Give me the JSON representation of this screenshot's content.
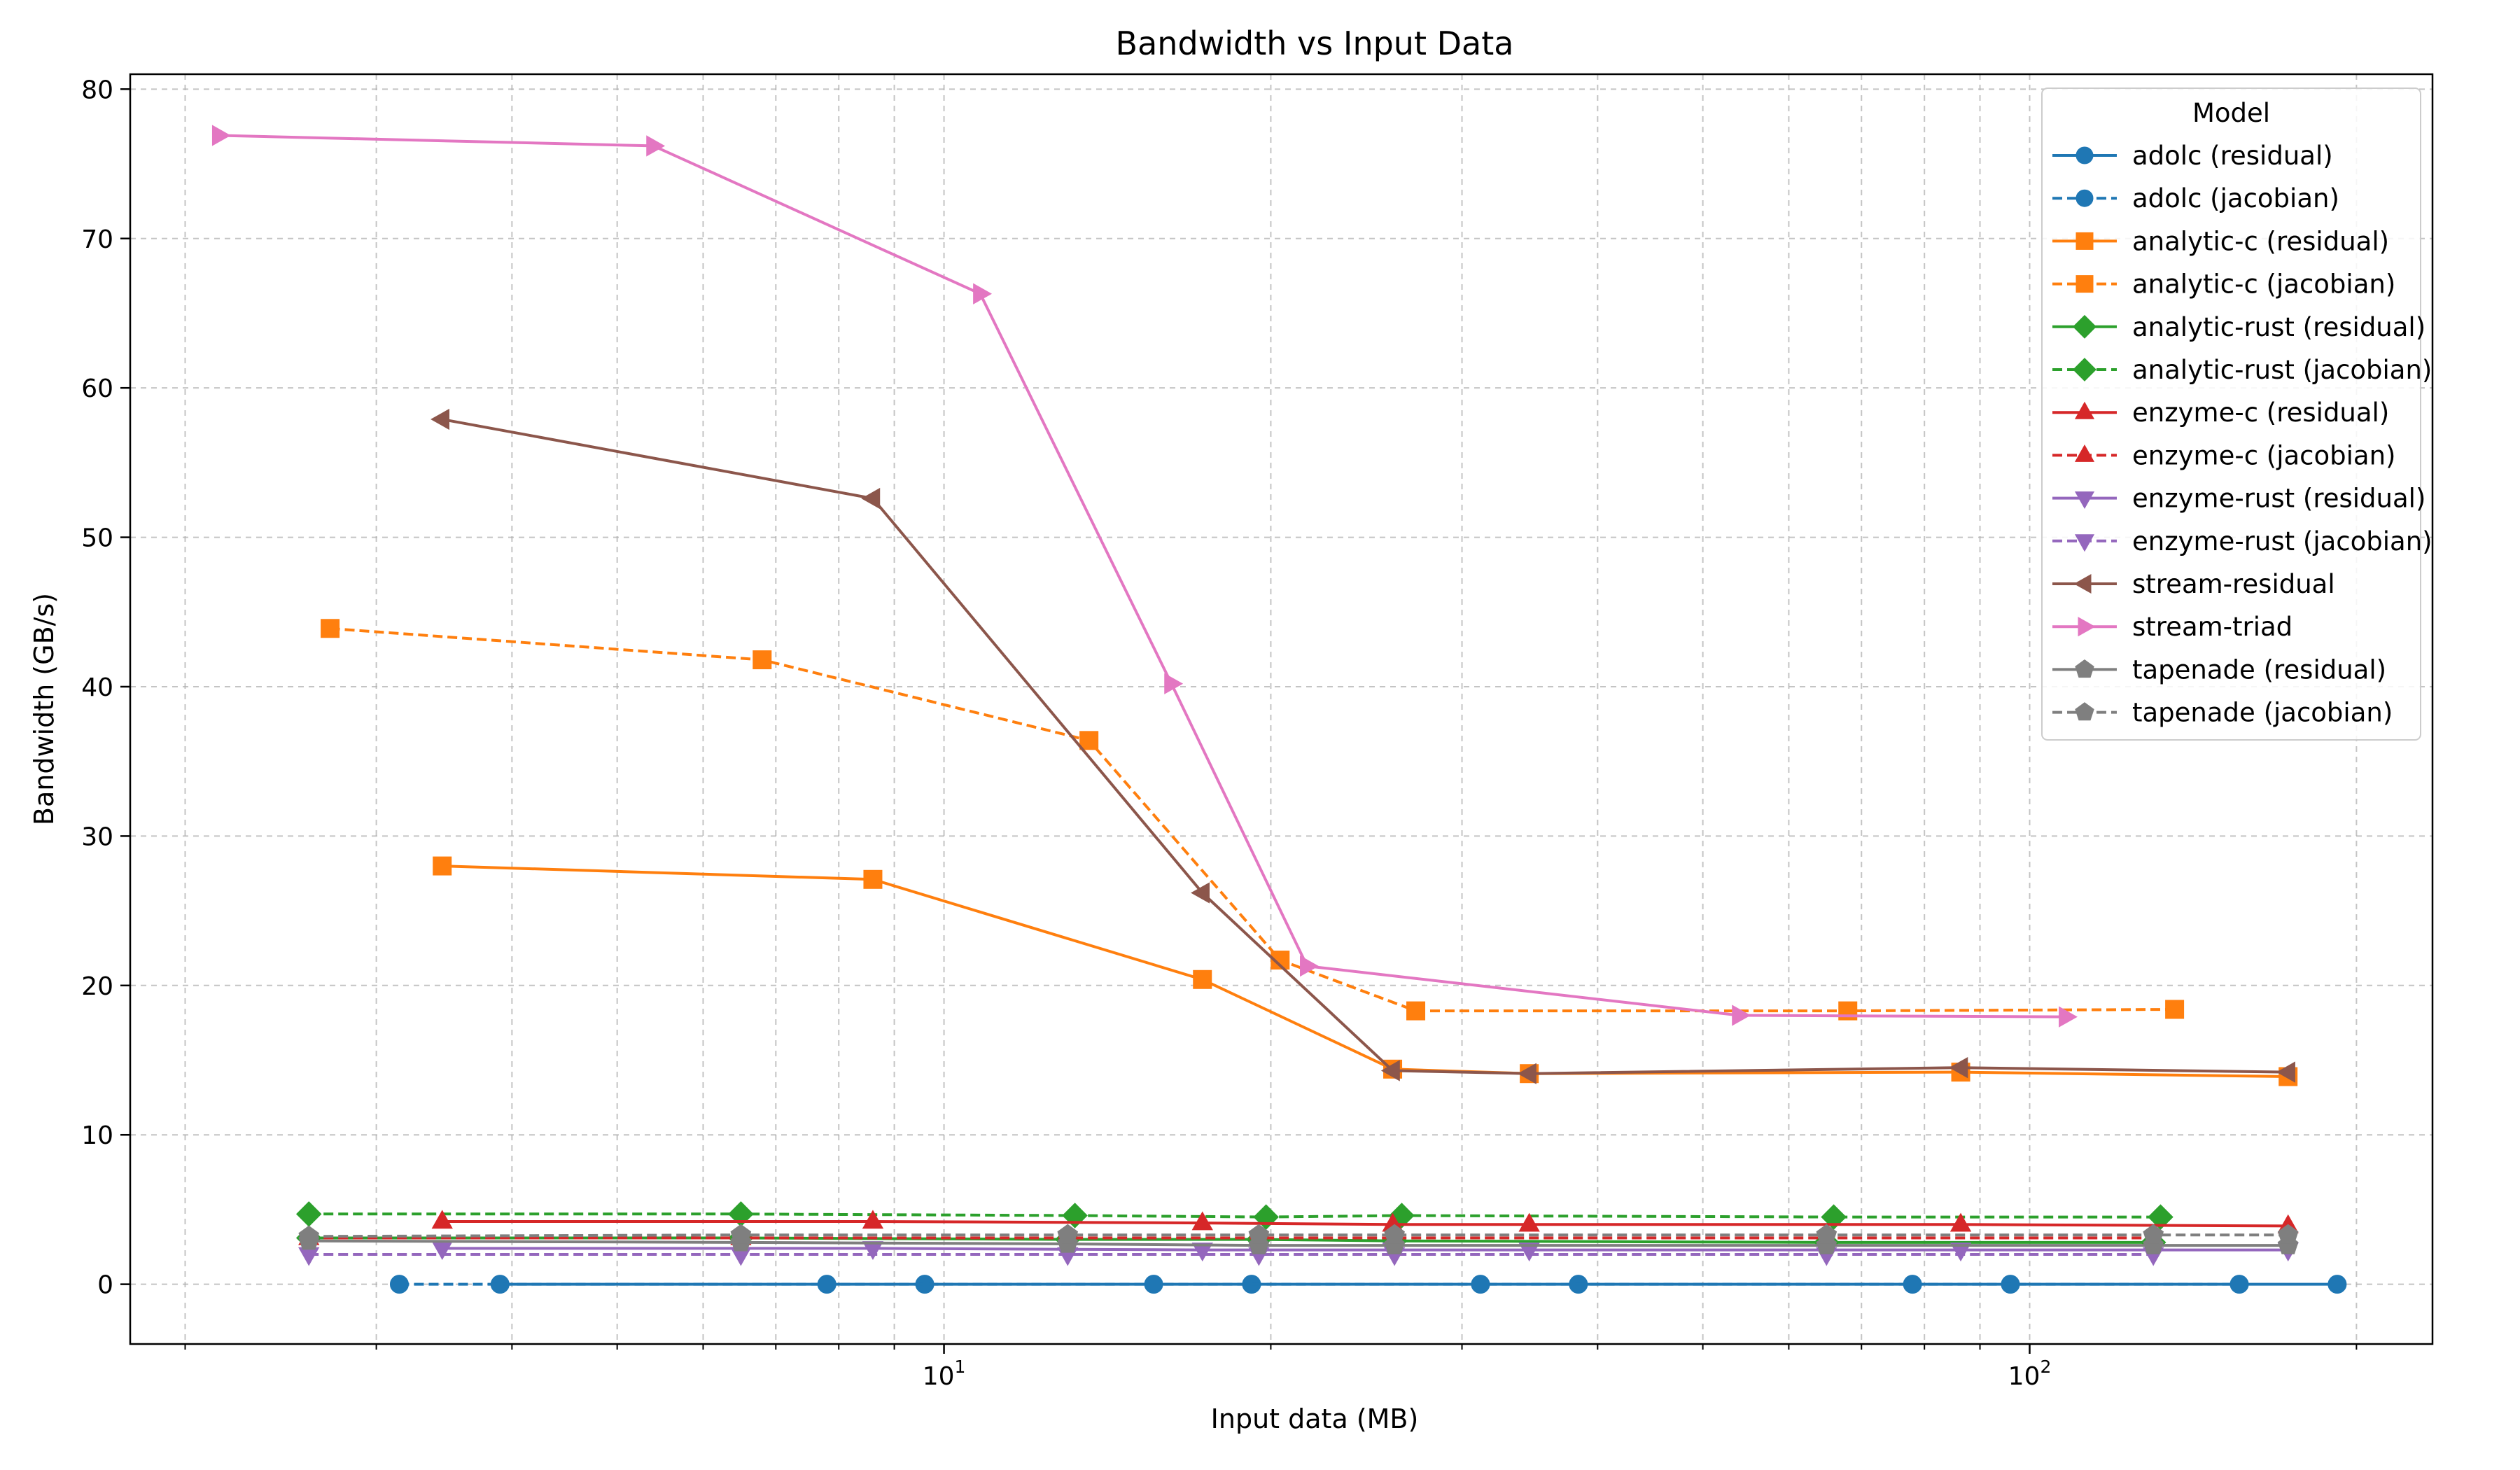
{
  "chart_data": {
    "type": "line",
    "title": "Bandwidth vs Input Data",
    "xlabel": "Input data (MB)",
    "ylabel": "Bandwidth (GB/s)",
    "xscale": "log",
    "xlim": [
      1.78,
      235
    ],
    "ylim": [
      -4,
      81
    ],
    "x_tick_labels": [
      {
        "value": 10,
        "label": "10",
        "sup": "1"
      },
      {
        "value": 100,
        "label": "10",
        "sup": "2"
      }
    ],
    "y_ticks": [
      0,
      10,
      20,
      30,
      40,
      50,
      60,
      70,
      80
    ],
    "grid": true,
    "legend_title": "Model",
    "legend_position": "top-right",
    "series": [
      {
        "name": "adolc (residual)",
        "color": "#1f77b4",
        "marker": "circle",
        "dashed": false,
        "x": [
          3.9,
          9.6,
          19.2,
          38.4,
          96,
          192
        ],
        "y": [
          0,
          0,
          0,
          0,
          0,
          0
        ]
      },
      {
        "name": "adolc (jacobian)",
        "color": "#1f77b4",
        "marker": "circle",
        "dashed": true,
        "x": [
          3.15,
          7.8,
          15.6,
          31.2,
          78,
          156
        ],
        "y": [
          0,
          0,
          0,
          0,
          0,
          0
        ]
      },
      {
        "name": "analytic-c (residual)",
        "color": "#ff7f0e",
        "marker": "square",
        "dashed": false,
        "x": [
          3.45,
          8.6,
          17.3,
          25.9,
          34.6,
          86.4,
          173
        ],
        "y": [
          28,
          27.1,
          20.4,
          14.4,
          14.1,
          14.2,
          13.9
        ]
      },
      {
        "name": "analytic-c (jacobian)",
        "color": "#ff7f0e",
        "marker": "square",
        "dashed": true,
        "x": [
          2.72,
          6.8,
          13.6,
          20.4,
          27.2,
          68,
          136
        ],
        "y": [
          43.9,
          41.8,
          36.4,
          21.7,
          18.3,
          18.3,
          18.4
        ]
      },
      {
        "name": "analytic-rust (residual)",
        "color": "#2ca02c",
        "marker": "diamond",
        "dashed": false,
        "x": [
          2.6,
          6.5,
          13,
          19.5,
          26,
          65,
          130
        ],
        "y": [
          3.1,
          3.1,
          3.0,
          3.0,
          2.9,
          2.8,
          2.8
        ]
      },
      {
        "name": "analytic-rust (jacobian)",
        "color": "#2ca02c",
        "marker": "diamond",
        "dashed": true,
        "x": [
          2.6,
          6.5,
          13.2,
          19.8,
          26.4,
          66,
          132
        ],
        "y": [
          4.7,
          4.7,
          4.6,
          4.5,
          4.6,
          4.5,
          4.5
        ]
      },
      {
        "name": "enzyme-c (residual)",
        "color": "#d62728",
        "marker": "triangle-up",
        "dashed": false,
        "x": [
          3.45,
          8.6,
          17.3,
          25.9,
          34.6,
          86.4,
          173
        ],
        "y": [
          4.2,
          4.2,
          4.1,
          4.0,
          4.0,
          4.0,
          3.9
        ]
      },
      {
        "name": "enzyme-c (jacobian)",
        "color": "#d62728",
        "marker": "triangle-up",
        "dashed": true,
        "x": [
          2.6,
          6.5,
          13,
          19.5,
          26,
          65,
          130
        ],
        "y": [
          3.1,
          3.1,
          3.1,
          3.1,
          3.1,
          3.1,
          3.1
        ]
      },
      {
        "name": "enzyme-rust (residual)",
        "color": "#9467bd",
        "marker": "triangle-down",
        "dashed": false,
        "x": [
          3.45,
          8.6,
          17.3,
          25.9,
          34.6,
          86.4,
          173
        ],
        "y": [
          2.4,
          2.4,
          2.3,
          2.3,
          2.3,
          2.3,
          2.3
        ]
      },
      {
        "name": "enzyme-rust (jacobian)",
        "color": "#9467bd",
        "marker": "triangle-down",
        "dashed": true,
        "x": [
          2.6,
          6.5,
          13,
          19.5,
          26,
          65,
          130
        ],
        "y": [
          2.0,
          2.0,
          2.0,
          2.0,
          2.0,
          2.0,
          2.0
        ]
      },
      {
        "name": "stream-residual",
        "color": "#8c564b",
        "marker": "triangle-left",
        "dashed": false,
        "x": [
          3.45,
          8.6,
          17.3,
          25.9,
          34.6,
          86.4,
          173
        ],
        "y": [
          57.9,
          52.6,
          26.2,
          14.3,
          14.1,
          14.5,
          14.2
        ]
      },
      {
        "name": "stream-triad",
        "color": "#e377c2",
        "marker": "triangle-right",
        "dashed": false,
        "x": [
          2.15,
          5.4,
          10.8,
          16.2,
          21.6,
          54,
          108
        ],
        "y": [
          76.9,
          76.2,
          66.3,
          40.2,
          21.3,
          18.0,
          17.9
        ]
      },
      {
        "name": "tapenade (residual)",
        "color": "#7f7f7f",
        "marker": "pentagon",
        "dashed": false,
        "x": [
          2.6,
          6.5,
          13,
          19.5,
          26,
          65,
          130,
          173
        ],
        "y": [
          2.9,
          2.8,
          2.7,
          2.6,
          2.6,
          2.6,
          2.6,
          2.6
        ]
      },
      {
        "name": "tapenade (jacobian)",
        "color": "#7f7f7f",
        "marker": "pentagon",
        "dashed": true,
        "x": [
          2.6,
          6.5,
          13,
          19.5,
          26,
          65,
          130,
          173
        ],
        "y": [
          3.2,
          3.3,
          3.3,
          3.3,
          3.3,
          3.3,
          3.3,
          3.3
        ]
      }
    ]
  }
}
